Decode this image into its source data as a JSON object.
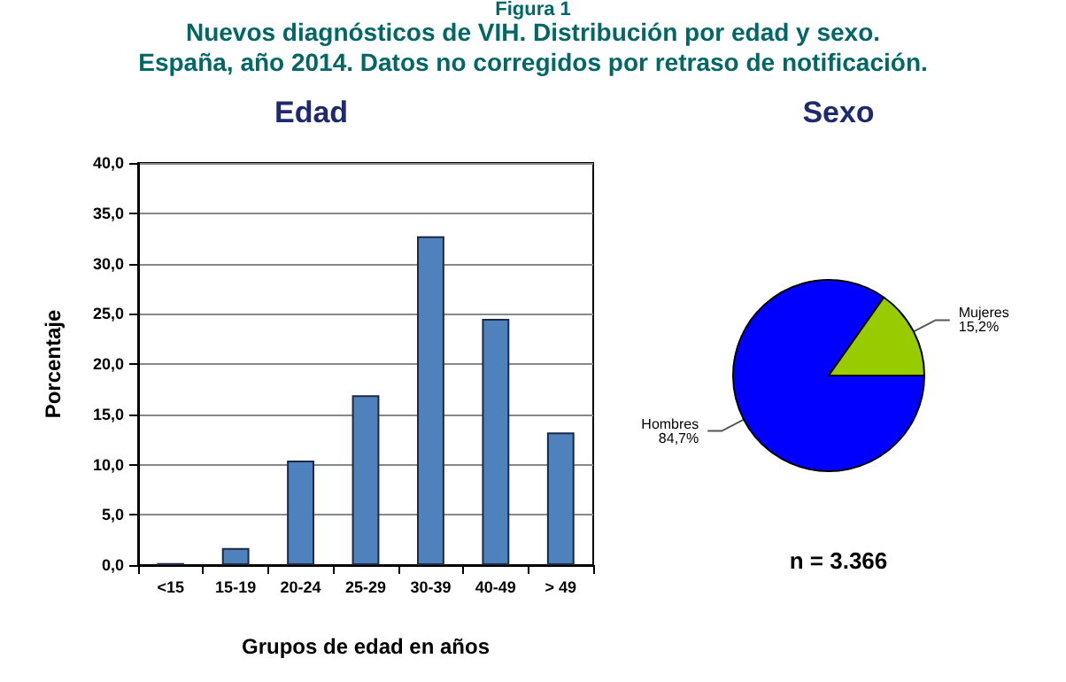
{
  "chart_data": [
    {
      "type": "other",
      "title": "Nuevos diagnósticos de VIH. Distribución por edad y sexo.",
      "subtitle": "España, año 2014. Datos no corregidos por retraso de notificación.",
      "annotations": [
        "Figura 1"
      ]
    },
    {
      "type": "bar",
      "title": "Edad",
      "xlabel": "Grupos de edad en años",
      "ylabel": "Porcentaje",
      "categories": [
        "<15",
        "15-19",
        "20-24",
        "25-29",
        "30-39",
        "40-49",
        "> 49"
      ],
      "values": [
        0.2,
        1.7,
        10.4,
        16.9,
        32.7,
        24.5,
        13.2
      ],
      "color": "#4f81bd",
      "ylim": [
        0,
        40
      ],
      "yticks": [
        {
          "value": 0,
          "label": "0,0"
        },
        {
          "value": 5,
          "label": "5,0"
        },
        {
          "value": 10,
          "label": "10,0"
        },
        {
          "value": 15,
          "label": "15,0"
        },
        {
          "value": 20,
          "label": "20,0"
        },
        {
          "value": 25,
          "label": "25,0"
        },
        {
          "value": 30,
          "label": "30,0"
        },
        {
          "value": 35,
          "label": "35,0"
        },
        {
          "value": 40,
          "label": "40,0"
        }
      ],
      "grid": "y",
      "legend": false
    },
    {
      "type": "pie",
      "title": "Sexo",
      "categories": [
        "Hombres",
        "Mujeres"
      ],
      "values": [
        84.7,
        15.2
      ],
      "value_labels": [
        "84,7%",
        "15,2%"
      ],
      "colors": [
        "#0000ff",
        "#99cc00"
      ],
      "annotations": [
        "n = 3.366"
      ],
      "legend": false
    }
  ]
}
